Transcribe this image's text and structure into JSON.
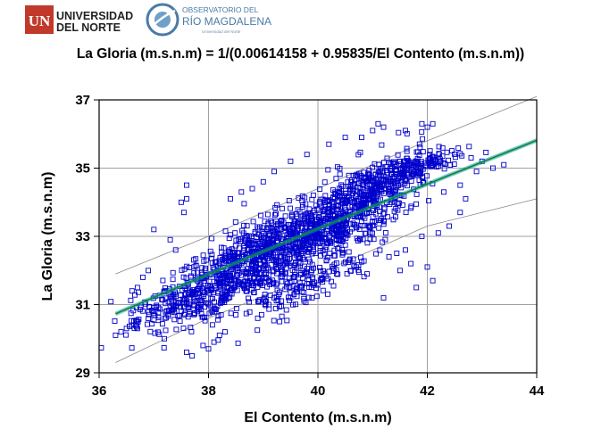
{
  "logos": {
    "university_line1": "UNIVERSIDAD",
    "university_line2": "DEL NORTE",
    "university_mark": "UN",
    "observatory_line1": "OBSERVATORIO DEL",
    "observatory_line2": "RÍO MAGDALENA",
    "observatory_line3": "Universidad del Norte",
    "colors": {
      "university_red": "#c0392b",
      "observatory_blue": "#4a7ba6"
    }
  },
  "chart_data": {
    "type": "scatter",
    "title": "La Gloria (m.s.n.m) = 1/(0.00614158 + 0.95835/El Contento (m.s.n.m))",
    "xlabel": "El Contento (m.s.n.m)",
    "ylabel": "La Gloria (m.s.n.m)",
    "xlim": [
      36,
      44
    ],
    "ylim": [
      29,
      37
    ],
    "xticks": [
      36,
      38,
      40,
      42,
      44
    ],
    "yticks": [
      29,
      31,
      33,
      35,
      37
    ],
    "grid": true,
    "marker": "square",
    "colors": {
      "points": "#0000cc",
      "fit": "#1a7f3c",
      "fit_band": "#00a0a0",
      "prediction": "#888888"
    },
    "model": {
      "a": 0.00614158,
      "b": 0.95835,
      "form": "y = 1/(a + b/x)"
    },
    "fit_line": {
      "x": [
        36.3,
        38,
        40,
        42,
        44
      ],
      "y": [
        30.6,
        31.8,
        33.2,
        34.6,
        35.8
      ]
    },
    "prediction_upper": {
      "x": [
        36.3,
        38,
        40,
        42,
        44
      ],
      "y": [
        31.9,
        33.0,
        34.4,
        35.8,
        37.1
      ]
    },
    "prediction_lower": {
      "x": [
        36.3,
        38,
        40,
        42,
        44
      ],
      "y": [
        29.3,
        30.6,
        31.9,
        33.3,
        34.1
      ]
    },
    "clusters": [
      {
        "x": 39.0,
        "y": 32.4,
        "sx": 0.8,
        "sy": 0.55,
        "n": 650
      },
      {
        "x": 40.2,
        "y": 33.3,
        "sx": 0.7,
        "sy": 0.5,
        "n": 480
      },
      {
        "x": 41.0,
        "y": 34.4,
        "sx": 0.55,
        "sy": 0.45,
        "n": 300
      },
      {
        "x": 38.0,
        "y": 31.4,
        "sx": 0.55,
        "sy": 0.45,
        "n": 200
      },
      {
        "x": 37.2,
        "y": 31.0,
        "sx": 0.35,
        "sy": 0.3,
        "n": 80
      },
      {
        "x": 41.8,
        "y": 35.0,
        "sx": 0.45,
        "sy": 0.2,
        "n": 120
      },
      {
        "x": 39.8,
        "y": 31.6,
        "sx": 0.6,
        "sy": 0.3,
        "n": 120
      }
    ],
    "points": [
      [
        36.3,
        30.1
      ],
      [
        36.4,
        30.2
      ],
      [
        36.5,
        30.3
      ],
      [
        36.6,
        30.4
      ],
      [
        36.7,
        30.3
      ],
      [
        37.6,
        34.5
      ],
      [
        37.5,
        34.0
      ],
      [
        37.55,
        33.7
      ],
      [
        37.6,
        34.1
      ],
      [
        37.0,
        33.2
      ],
      [
        37.6,
        29.6
      ],
      [
        37.7,
        29.5
      ],
      [
        37.9,
        29.8
      ],
      [
        38.1,
        29.9
      ],
      [
        38.2,
        30.1
      ],
      [
        38.0,
        29.7
      ],
      [
        38.3,
        30.2
      ],
      [
        41.8,
        31.5
      ],
      [
        42.1,
        31.7
      ],
      [
        42.0,
        32.1
      ],
      [
        41.7,
        32.2
      ],
      [
        41.5,
        32.0
      ],
      [
        41.2,
        31.2
      ],
      [
        43.4,
        35.1
      ],
      [
        43.2,
        35.0
      ],
      [
        43.0,
        35.2
      ],
      [
        42.8,
        35.3
      ],
      [
        42.9,
        34.9
      ],
      [
        42.6,
        34.5
      ],
      [
        42.3,
        34.3
      ],
      [
        41.0,
        36.1
      ],
      [
        41.1,
        36.3
      ],
      [
        41.2,
        36.2
      ],
      [
        41.9,
        36.3
      ],
      [
        42.0,
        36.2
      ],
      [
        42.1,
        36.3
      ],
      [
        41.6,
        36.1
      ],
      [
        40.8,
        35.9
      ],
      [
        40.5,
        35.9
      ],
      [
        40.2,
        35.7
      ],
      [
        39.8,
        35.4
      ],
      [
        39.5,
        35.2
      ],
      [
        39.2,
        34.9
      ],
      [
        39.0,
        34.6
      ],
      [
        38.8,
        34.4
      ],
      [
        38.6,
        34.3
      ],
      [
        38.4,
        34.1
      ],
      [
        37.4,
        32.6
      ],
      [
        37.3,
        32.9
      ],
      [
        36.9,
        32.0
      ],
      [
        36.8,
        31.8
      ],
      [
        36.7,
        31.5
      ],
      [
        36.6,
        31.4
      ],
      [
        37.0,
        30.8
      ],
      [
        37.2,
        30.6
      ],
      [
        37.5,
        30.8
      ],
      [
        37.8,
        30.9
      ],
      [
        38.5,
        30.7
      ],
      [
        38.9,
        30.6
      ],
      [
        39.3,
        30.5
      ],
      [
        39.1,
        31.0
      ],
      [
        41.9,
        33.0
      ],
      [
        42.2,
        33.1
      ],
      [
        42.4,
        33.3
      ],
      [
        42.6,
        33.7
      ],
      [
        42.7,
        34.1
      ],
      [
        41.3,
        32.4
      ],
      [
        41.6,
        32.6
      ],
      [
        40.7,
        32.1
      ],
      [
        40.9,
        31.9
      ]
    ]
  }
}
